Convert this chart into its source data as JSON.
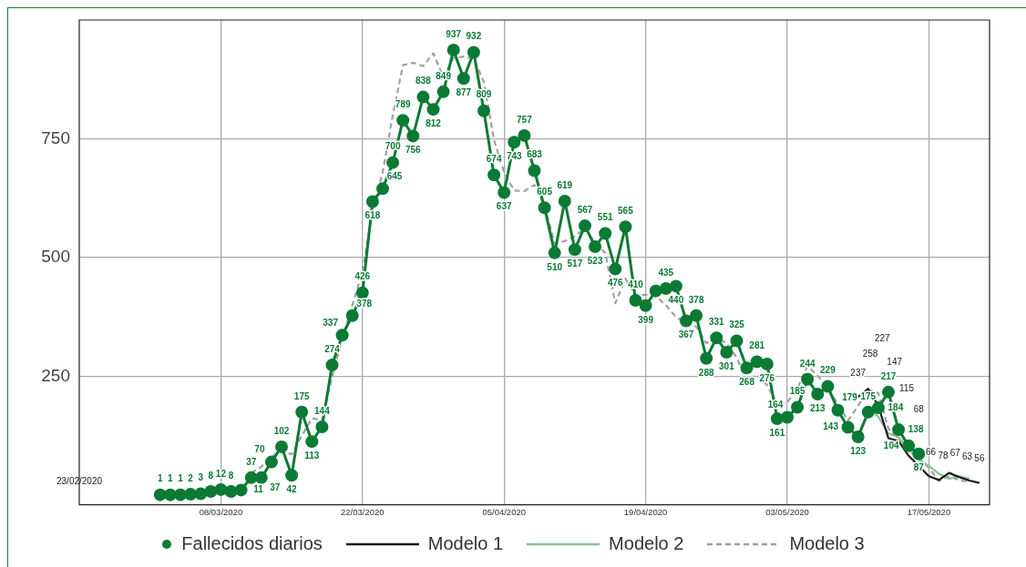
{
  "chart_data": {
    "type": "line",
    "x": [
      "2020-03-02",
      "2020-03-03",
      "2020-03-04",
      "2020-03-05",
      "2020-03-06",
      "2020-03-07",
      "2020-03-08",
      "2020-03-09",
      "2020-03-10",
      "2020-03-11",
      "2020-03-12",
      "2020-03-13",
      "2020-03-14",
      "2020-03-15",
      "2020-03-16",
      "2020-03-17",
      "2020-03-18",
      "2020-03-19",
      "2020-03-20",
      "2020-03-21",
      "2020-03-22",
      "2020-03-23",
      "2020-03-24",
      "2020-03-25",
      "2020-03-26",
      "2020-03-27",
      "2020-03-28",
      "2020-03-29",
      "2020-03-30",
      "2020-03-31",
      "2020-04-01",
      "2020-04-02",
      "2020-04-03",
      "2020-04-04",
      "2020-04-05",
      "2020-04-06",
      "2020-04-07",
      "2020-04-08",
      "2020-04-09",
      "2020-04-10",
      "2020-04-11",
      "2020-04-12",
      "2020-04-13",
      "2020-04-14",
      "2020-04-15",
      "2020-04-16",
      "2020-04-17",
      "2020-04-18",
      "2020-04-19",
      "2020-04-20",
      "2020-04-21",
      "2020-04-22",
      "2020-04-23",
      "2020-04-24",
      "2020-04-25",
      "2020-04-26",
      "2020-04-27",
      "2020-04-28",
      "2020-04-29",
      "2020-04-30",
      "2020-05-01",
      "2020-05-02",
      "2020-05-03",
      "2020-05-04",
      "2020-05-05",
      "2020-05-06",
      "2020-05-07",
      "2020-05-08",
      "2020-05-09",
      "2020-05-10",
      "2020-05-11",
      "2020-05-12",
      "2020-05-13",
      "2020-05-14",
      "2020-05-15",
      "2020-05-16"
    ],
    "series": [
      {
        "name": "Fallecidos diarios",
        "color": "#0b7a35",
        "marker": "circle",
        "values": [
          1,
          1,
          1,
          2,
          3,
          8,
          12,
          8,
          11,
          37,
          37,
          70,
          102,
          42,
          175,
          113,
          144,
          274,
          337,
          378,
          426,
          618,
          645,
          700,
          789,
          756,
          838,
          812,
          849,
          937,
          877,
          932,
          809,
          674,
          637,
          743,
          757,
          683,
          605,
          510,
          619,
          517,
          567,
          523,
          551,
          476,
          565,
          410,
          399,
          430,
          435,
          440,
          367,
          378,
          288,
          331,
          301,
          325,
          268,
          281,
          276,
          161,
          164,
          185,
          244,
          213,
          229,
          179,
          143,
          123,
          175,
          184,
          217,
          138,
          104,
          87
        ],
        "value_labels": [
          "1",
          "1",
          "1",
          "2",
          "3",
          "8",
          "12",
          "8",
          "11",
          "37",
          "37",
          "70",
          "102",
          "42",
          "175",
          "113",
          "144",
          "274",
          "337",
          "378",
          "426",
          "618",
          "645",
          "700",
          "789",
          "756",
          "838",
          "812",
          "849",
          "937",
          "877",
          "932",
          "809",
          "674",
          "637",
          "743",
          "757",
          "683",
          "605",
          "510",
          "619",
          "517",
          "567",
          "523",
          "551",
          "476",
          "565",
          "410",
          "399",
          null,
          "435",
          "440",
          "367",
          "378",
          "288",
          "331",
          "301",
          "325",
          "268",
          "281",
          "276",
          "161",
          "164",
          "185",
          "244",
          "213",
          "229",
          "179",
          "143",
          "123",
          "175",
          "184",
          "217",
          "138",
          "104",
          "87"
        ]
      },
      {
        "name": "Modelo 1",
        "color": "#1a1a1a",
        "marker": "none",
        "line_style": "solid",
        "x": [
          "2020-05-10",
          "2020-05-11",
          "2020-05-12",
          "2020-05-13",
          "2020-05-14",
          "2020-05-15",
          "2020-05-16",
          "2020-05-17",
          "2020-05-18",
          "2020-05-19",
          "2020-05-20",
          "2020-05-21",
          "2020-05-22"
        ],
        "values": [
          207,
          224,
          188,
          120,
          114,
          83,
          62,
          40,
          32,
          47,
          38,
          31,
          26
        ]
      },
      {
        "name": "Modelo 2",
        "color": "#86c495",
        "marker": "none",
        "line_style": "solid",
        "x": [
          "2020-05-11",
          "2020-05-12",
          "2020-05-13",
          "2020-05-14",
          "2020-05-15",
          "2020-05-16",
          "2020-05-17",
          "2020-05-18",
          "2020-05-19",
          "2020-05-20",
          "2020-05-21"
        ],
        "values": [
          185,
          165,
          130,
          122,
          100,
          75,
          62,
          45,
          35,
          40,
          35
        ]
      },
      {
        "name": "Modelo 3",
        "color": "#a0a0a0",
        "marker": "none",
        "line_style": "dashed",
        "x": [
          "2020-03-11",
          "2020-03-12",
          "2020-03-13",
          "2020-03-14",
          "2020-03-15",
          "2020-03-16",
          "2020-03-17",
          "2020-03-18",
          "2020-03-19",
          "2020-03-20",
          "2020-03-21",
          "2020-03-22",
          "2020-03-23",
          "2020-03-24",
          "2020-03-25",
          "2020-03-26",
          "2020-03-27",
          "2020-03-28",
          "2020-03-29",
          "2020-03-30",
          "2020-03-31",
          "2020-04-01",
          "2020-04-02",
          "2020-04-03",
          "2020-04-04",
          "2020-04-05",
          "2020-04-06",
          "2020-04-07",
          "2020-04-08",
          "2020-04-09",
          "2020-04-10",
          "2020-04-11",
          "2020-04-12",
          "2020-04-13",
          "2020-04-14",
          "2020-04-15",
          "2020-04-16",
          "2020-04-17",
          "2020-04-18",
          "2020-04-19",
          "2020-04-20",
          "2020-04-21",
          "2020-04-22",
          "2020-04-23",
          "2020-04-24",
          "2020-04-25",
          "2020-04-26",
          "2020-04-27",
          "2020-04-28",
          "2020-04-29",
          "2020-04-30",
          "2020-05-01",
          "2020-05-02",
          "2020-05-03",
          "2020-05-04",
          "2020-05-05",
          "2020-05-06",
          "2020-05-07",
          "2020-05-08",
          "2020-05-09",
          "2020-05-10",
          "2020-05-11",
          "2020-05-12",
          "2020-05-13",
          "2020-05-14",
          "2020-05-15",
          "2020-05-16",
          "2020-05-17",
          "2020-05-18",
          "2020-05-19",
          "2020-05-20",
          "2020-05-21"
        ],
        "values": [
          47,
          60,
          80,
          95,
          86,
          125,
          162,
          158,
          250,
          330,
          400,
          470,
          600,
          680,
          800,
          905,
          910,
          903,
          930,
          880,
          920,
          923,
          919,
          870,
          748,
          680,
          641,
          640,
          653,
          610,
          530,
          535,
          545,
          562,
          530,
          510,
          404,
          456,
          420,
          422,
          419,
          400,
          375,
          362,
          355,
          320,
          330,
          320,
          290,
          240,
          254,
          232,
          192,
          196,
          225,
          272,
          252,
          225,
          192,
          157,
          188,
          222,
          215,
          140,
          120,
          95,
          77,
          58,
          30,
          40,
          32,
          28
        ]
      }
    ],
    "xlim": [
      "2020-02-23",
      "2020-05-23"
    ],
    "xticks": [
      {
        "value": "2020-03-08",
        "label": "08/03/2020"
      },
      {
        "value": "2020-03-22",
        "label": "22/03/2020"
      },
      {
        "value": "2020-04-05",
        "label": "05/04/2020"
      },
      {
        "value": "2020-04-19",
        "label": "19/04/2020"
      },
      {
        "value": "2020-05-03",
        "label": "03/05/2020"
      },
      {
        "value": "2020-05-17",
        "label": "17/05/2020"
      }
    ],
    "ylim": [
      -20,
      1000
    ],
    "yticks": [
      250,
      500,
      750
    ],
    "grid": true,
    "legend": "bottom",
    "annotations": [
      "23/02/2020",
      "237",
      "258",
      "227",
      "147",
      "115",
      "68",
      "66",
      "78",
      "67",
      "63",
      "56"
    ]
  }
}
